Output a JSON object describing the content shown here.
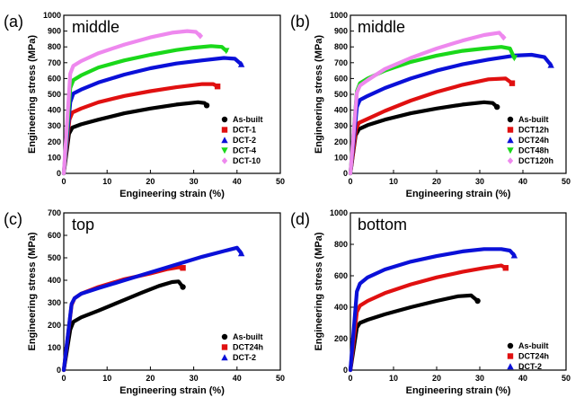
{
  "chart_data": [
    {
      "type": "line",
      "panel": "(a)",
      "condition": "middle",
      "xlabel": "Engineering strain (%)",
      "ylabel": "Engineering stress (MPa)",
      "xlim": [
        0,
        50
      ],
      "ylim": [
        0,
        1000
      ],
      "xticks": [
        0,
        10,
        20,
        30,
        40,
        50
      ],
      "yticks": [
        0,
        100,
        200,
        300,
        400,
        500,
        600,
        700,
        800,
        900,
        1000
      ],
      "legend_position": "bottom-right",
      "series": [
        {
          "name": "As-built",
          "color": "#000000",
          "marker": "circle",
          "x": [
            0,
            1.2,
            2,
            4,
            8,
            14,
            20,
            26,
            31,
            32.5,
            33
          ],
          "y": [
            0,
            250,
            290,
            310,
            340,
            380,
            410,
            435,
            450,
            445,
            430
          ]
        },
        {
          "name": "DCT-1",
          "color": "#e01010",
          "marker": "square",
          "x": [
            0,
            1.3,
            2,
            4,
            8,
            14,
            20,
            26,
            32,
            34.5,
            35.5
          ],
          "y": [
            0,
            340,
            385,
            410,
            450,
            490,
            520,
            545,
            565,
            565,
            550
          ]
        },
        {
          "name": "DCT-2",
          "color": "#0a10d8",
          "marker": "triangle-up",
          "x": [
            0,
            1.5,
            2.2,
            4,
            8,
            14,
            20,
            26,
            32,
            37,
            39.5,
            41
          ],
          "y": [
            0,
            450,
            505,
            530,
            575,
            625,
            665,
            695,
            715,
            730,
            725,
            690
          ]
        },
        {
          "name": "DCT-4",
          "color": "#1ad81a",
          "marker": "triangle-down",
          "x": [
            0,
            1.5,
            2.2,
            4,
            8,
            14,
            20,
            26,
            30,
            34,
            36.5,
            37.5
          ],
          "y": [
            0,
            540,
            590,
            620,
            670,
            715,
            750,
            780,
            795,
            805,
            800,
            775
          ]
        },
        {
          "name": "DCT-10",
          "color": "#ee88ee",
          "marker": "diamond",
          "x": [
            0,
            1.5,
            2.2,
            4,
            8,
            14,
            20,
            25,
            28.5,
            30.5,
            31.5
          ],
          "y": [
            0,
            630,
            680,
            710,
            760,
            815,
            860,
            890,
            900,
            895,
            870
          ]
        }
      ]
    },
    {
      "type": "line",
      "panel": "(b)",
      "condition": "middle",
      "xlabel": "Engineering strain (%)",
      "ylabel": "Engineering stress (MPa)",
      "xlim": [
        0,
        50
      ],
      "ylim": [
        0,
        1000
      ],
      "xticks": [
        0,
        10,
        20,
        30,
        40,
        50
      ],
      "yticks": [
        0,
        100,
        200,
        300,
        400,
        500,
        600,
        700,
        800,
        900,
        1000
      ],
      "legend_position": "bottom-right",
      "series": [
        {
          "name": "As-built",
          "color": "#000000",
          "marker": "circle",
          "x": [
            0,
            1.2,
            2,
            4,
            8,
            14,
            20,
            26,
            31,
            33,
            34
          ],
          "y": [
            0,
            240,
            280,
            305,
            340,
            380,
            410,
            435,
            450,
            445,
            420
          ]
        },
        {
          "name": "DCT12h",
          "color": "#e01010",
          "marker": "square",
          "x": [
            0,
            1.3,
            2,
            4,
            8,
            14,
            20,
            26,
            32,
            36,
            37.5
          ],
          "y": [
            0,
            280,
            320,
            345,
            395,
            460,
            515,
            560,
            595,
            600,
            570
          ]
        },
        {
          "name": "DCT24h",
          "color": "#0a10d8",
          "marker": "triangle-up",
          "x": [
            0,
            1.5,
            2.2,
            4,
            8,
            14,
            20,
            26,
            32,
            38,
            42,
            45,
            46.5
          ],
          "y": [
            0,
            420,
            465,
            490,
            540,
            600,
            650,
            690,
            720,
            745,
            750,
            735,
            685
          ]
        },
        {
          "name": "DCT48h",
          "color": "#1ad81a",
          "marker": "triangle-down",
          "x": [
            0,
            1.5,
            2.2,
            4,
            8,
            14,
            20,
            26,
            31,
            35,
            37,
            38
          ],
          "y": [
            0,
            520,
            570,
            600,
            650,
            705,
            745,
            775,
            790,
            800,
            790,
            730
          ]
        },
        {
          "name": "DCT120h",
          "color": "#ee88ee",
          "marker": "diamond",
          "x": [
            0,
            1.5,
            2.2,
            4,
            8,
            14,
            20,
            26,
            31,
            34.5,
            35.5
          ],
          "y": [
            0,
            510,
            555,
            590,
            660,
            730,
            790,
            840,
            875,
            890,
            860
          ]
        }
      ]
    },
    {
      "type": "line",
      "panel": "(c)",
      "condition": "top",
      "xlabel": "Engineering strain (%)",
      "ylabel": "Engineering stress (MPa)",
      "xlim": [
        0,
        50
      ],
      "ylim": [
        0,
        700
      ],
      "xticks": [
        0,
        10,
        20,
        30,
        40,
        50
      ],
      "yticks": [
        0,
        100,
        200,
        300,
        400,
        500,
        600,
        700
      ],
      "legend_position": "bottom-right",
      "series": [
        {
          "name": "As-built",
          "color": "#000000",
          "marker": "circle",
          "x": [
            0,
            1.5,
            2.2,
            4,
            8,
            13,
            18,
            22,
            25,
            26.5,
            27.5
          ],
          "y": [
            0,
            180,
            215,
            235,
            265,
            305,
            345,
            375,
            392,
            395,
            370
          ]
        },
        {
          "name": "DCT24h",
          "color": "#e01010",
          "marker": "square",
          "x": [
            0,
            1.8,
            2.5,
            4,
            8,
            14,
            20,
            24,
            26.5,
            27.5
          ],
          "y": [
            0,
            290,
            320,
            340,
            370,
            405,
            430,
            450,
            458,
            455
          ]
        },
        {
          "name": "DCT-2",
          "color": "#0a10d8",
          "marker": "triangle-up",
          "x": [
            0,
            1.8,
            2.5,
            4,
            8,
            14,
            20,
            26,
            32,
            37,
            40,
            41
          ],
          "y": [
            0,
            295,
            320,
            340,
            365,
            400,
            435,
            470,
            505,
            530,
            545,
            520
          ]
        }
      ]
    },
    {
      "type": "line",
      "panel": "(d)",
      "condition": "bottom",
      "xlabel": "Engineering strain (%)",
      "ylabel": "Engineering stress (MPa)",
      "xlim": [
        0,
        50
      ],
      "ylim": [
        0,
        1000
      ],
      "xticks": [
        0,
        10,
        20,
        30,
        40,
        50
      ],
      "yticks": [
        0,
        200,
        400,
        600,
        800,
        1000
      ],
      "legend_position": "bottom-right",
      "series": [
        {
          "name": "As-built",
          "color": "#000000",
          "marker": "circle",
          "x": [
            0,
            1.5,
            2.2,
            4,
            8,
            14,
            20,
            25,
            28,
            29.5
          ],
          "y": [
            0,
            270,
            300,
            320,
            355,
            400,
            440,
            470,
            475,
            440
          ]
        },
        {
          "name": "DCT24h",
          "color": "#e01010",
          "marker": "square",
          "x": [
            0,
            1.5,
            2.2,
            4,
            8,
            14,
            20,
            26,
            31,
            35,
            36
          ],
          "y": [
            0,
            370,
            410,
            440,
            490,
            545,
            590,
            625,
            650,
            665,
            650
          ]
        },
        {
          "name": "DCT-2",
          "color": "#0a10d8",
          "marker": "triangle-up",
          "x": [
            0,
            1.5,
            2.2,
            4,
            8,
            14,
            20,
            26,
            31,
            35,
            37,
            38
          ],
          "y": [
            0,
            500,
            550,
            590,
            640,
            690,
            725,
            755,
            770,
            770,
            760,
            730
          ]
        }
      ]
    }
  ]
}
